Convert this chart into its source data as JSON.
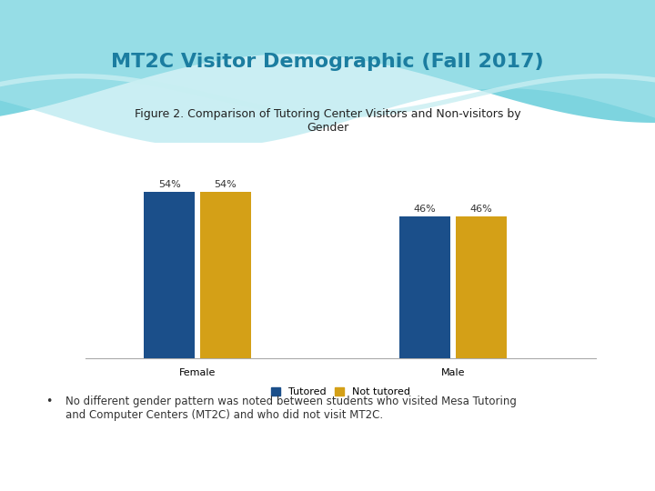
{
  "title": "MT2C Visitor Demographic (Fall 2017)",
  "subtitle": "Figure 2. Comparison of Tutoring Center Visitors and Non-visitors by\nGender",
  "categories": [
    "Female",
    "Male"
  ],
  "tutored": [
    54,
    46
  ],
  "not_tutored": [
    54,
    46
  ],
  "bar_color_tutored": "#1B4F8A",
  "bar_color_not_tutored": "#D4A017",
  "legend_labels": [
    "Tutored",
    "Not tutored"
  ],
  "ylim": [
    0,
    70
  ],
  "title_color": "#1B7DA0",
  "title_fontsize": 16,
  "subtitle_fontsize": 9,
  "label_fontsize": 8,
  "bar_label_fontsize": 8,
  "bullet_text": "No different gender pattern was noted between students who visited Mesa Tutoring\nand Computer Centers (MT2C) and who did not visit MT2C.",
  "bg_color": "#FFFFFF",
  "wave_color1": "#7DD4DF",
  "wave_color2": "#A8E4EC",
  "wave_color3": "#C8EEF2"
}
